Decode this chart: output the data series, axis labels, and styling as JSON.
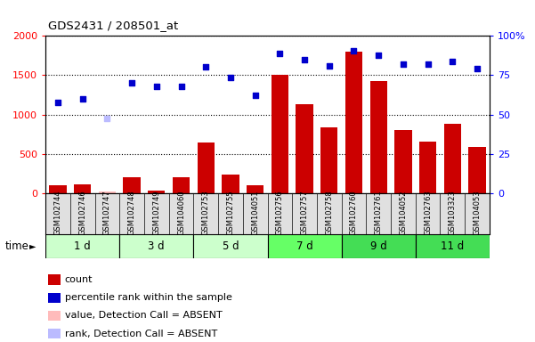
{
  "title": "GDS2431 / 208501_at",
  "samples": [
    "GSM102744",
    "GSM102746",
    "GSM102747",
    "GSM102748",
    "GSM102749",
    "GSM104060",
    "GSM102753",
    "GSM102755",
    "GSM104051",
    "GSM102756",
    "GSM102757",
    "GSM102758",
    "GSM102760",
    "GSM102761",
    "GSM104052",
    "GSM102763",
    "GSM103323",
    "GSM104053"
  ],
  "time_groups": [
    {
      "label": "1 d",
      "start": 0,
      "end": 3,
      "color": "#ccffcc"
    },
    {
      "label": "3 d",
      "start": 3,
      "end": 6,
      "color": "#ccffcc"
    },
    {
      "label": "5 d",
      "start": 6,
      "end": 9,
      "color": "#ccffcc"
    },
    {
      "label": "7 d",
      "start": 9,
      "end": 12,
      "color": "#66ff66"
    },
    {
      "label": "9 d",
      "start": 12,
      "end": 15,
      "color": "#44dd55"
    },
    {
      "label": "11 d",
      "start": 15,
      "end": 18,
      "color": "#44dd55"
    }
  ],
  "bar_values": [
    100,
    110,
    20,
    200,
    30,
    200,
    650,
    240,
    100,
    1500,
    1130,
    840,
    1800,
    1430,
    800,
    660,
    880,
    590
  ],
  "bar_absent": [
    false,
    false,
    true,
    false,
    false,
    false,
    false,
    false,
    false,
    false,
    false,
    false,
    false,
    false,
    false,
    false,
    false,
    false
  ],
  "dot_values": [
    1150,
    1200,
    950,
    1400,
    1360,
    1360,
    1610,
    1470,
    1240,
    1780,
    1700,
    1620,
    1810,
    1760,
    1640,
    1640,
    1680,
    1590
  ],
  "dot_absent": [
    false,
    false,
    true,
    false,
    false,
    false,
    false,
    false,
    false,
    false,
    false,
    false,
    false,
    false,
    false,
    false,
    false,
    false
  ],
  "ylim_left": [
    0,
    2000
  ],
  "ylim_right": [
    0,
    100
  ],
  "left_ticks": [
    0,
    500,
    1000,
    1500,
    2000
  ],
  "right_ticks": [
    0,
    25,
    50,
    75,
    100
  ],
  "bar_color_present": "#cc0000",
  "bar_color_absent": "#ffbbbb",
  "dot_color_present": "#0000cc",
  "dot_color_absent": "#bbbbff",
  "bg_color": "#e0e0e0",
  "plot_bg": "#ffffff",
  "group_colors": [
    "#ccffcc",
    "#ccffcc",
    "#ccffcc",
    "#66ff66",
    "#44dd55",
    "#44dd55"
  ]
}
